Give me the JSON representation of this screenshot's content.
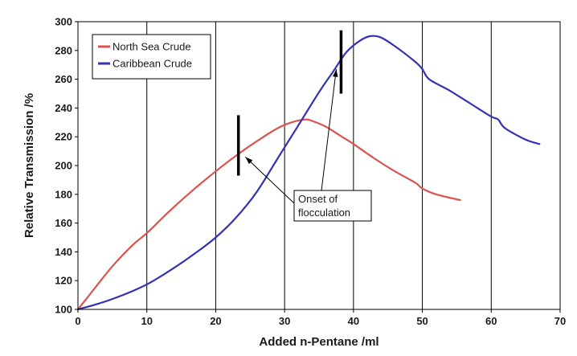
{
  "chart_data": {
    "type": "line",
    "title": "",
    "xlabel": "Added n-Pentane /ml",
    "ylabel": "Relative Transmission /%",
    "xlim": [
      0,
      70
    ],
    "ylim": [
      100,
      300
    ],
    "xticks": [
      0,
      10,
      20,
      30,
      40,
      50,
      60,
      70
    ],
    "yticks": [
      100,
      120,
      140,
      160,
      180,
      200,
      220,
      240,
      260,
      280,
      300
    ],
    "grid": "vertical",
    "legend": "top-left",
    "series": [
      {
        "name": "North Sea Crude",
        "color": "#d9534f",
        "x": [
          0,
          2,
          5,
          8,
          10,
          13,
          16,
          20,
          23,
          26,
          29,
          31,
          33,
          34,
          36,
          38,
          40,
          43,
          46,
          49,
          50,
          52,
          55.5
        ],
        "y": [
          100,
          112,
          130,
          145,
          153,
          167,
          180,
          196,
          207,
          217,
          226,
          230,
          232,
          231,
          227,
          221,
          215,
          205,
          196,
          188,
          184,
          180,
          176
        ]
      },
      {
        "name": "Caribbean Crude",
        "color": "#3333b3",
        "x": [
          0,
          3,
          6,
          9,
          11,
          14,
          17,
          20,
          23,
          26,
          29,
          32,
          35,
          37,
          39,
          41,
          42.5,
          44,
          46,
          49,
          50,
          51,
          54,
          57,
          60,
          61,
          62,
          65,
          67
        ],
        "y": [
          100,
          104,
          109,
          115,
          120,
          129,
          139,
          150,
          164,
          182,
          205,
          228,
          251,
          265,
          279,
          287,
          290,
          289,
          283,
          272,
          267,
          260,
          252,
          243,
          234,
          232,
          226,
          218,
          215
        ]
      }
    ],
    "onset_markers": [
      {
        "series": "North Sea Crude",
        "x": 23.3,
        "y_range": [
          193,
          235
        ]
      },
      {
        "series": "Caribbean Crude",
        "x": 38.2,
        "y_range": [
          250,
          294
        ]
      }
    ],
    "annotation": {
      "lines": [
        "Onset of",
        "flocculation"
      ],
      "arrow_targets": [
        [
          24.3,
          206
        ],
        [
          37.5,
          267
        ]
      ]
    }
  }
}
